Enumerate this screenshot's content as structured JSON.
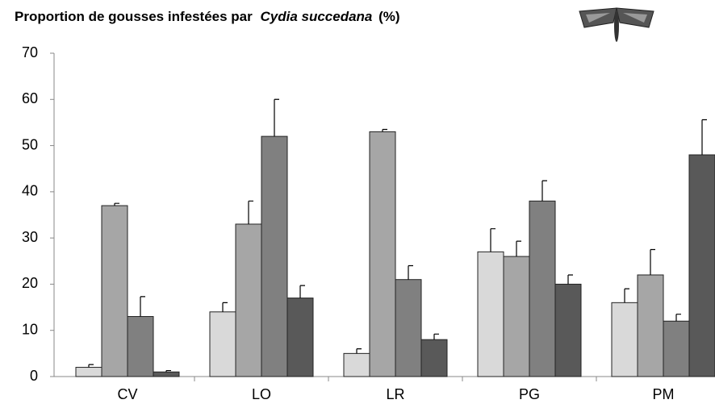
{
  "chart_data": {
    "type": "bar",
    "title_parts": [
      "Proportion de gousses infestées par",
      "Cydia succedana",
      "(%)"
    ],
    "categories": [
      "CV",
      "LO",
      "LR",
      "PG",
      "PM"
    ],
    "series": [
      {
        "color": "#d9d9d9",
        "values": [
          2,
          14,
          5,
          27,
          16
        ],
        "errors": [
          0.6,
          2,
          1,
          5,
          3
        ]
      },
      {
        "color": "#a6a6a6",
        "values": [
          37,
          33,
          53,
          26,
          22
        ],
        "errors": [
          0.5,
          5,
          0.5,
          3.3,
          5.5
        ]
      },
      {
        "color": "#808080",
        "values": [
          13,
          52,
          21,
          38,
          12
        ],
        "errors": [
          4.3,
          8,
          3,
          4.4,
          1.5
        ]
      },
      {
        "color": "#595959",
        "values": [
          1,
          17,
          8,
          20,
          48
        ],
        "errors": [
          0.3,
          2.7,
          1.2,
          2,
          7.6
        ]
      }
    ],
    "ylim": [
      0,
      70
    ],
    "yticks": [
      0,
      10,
      20,
      30,
      40,
      50,
      60,
      70
    ],
    "grid": false
  }
}
